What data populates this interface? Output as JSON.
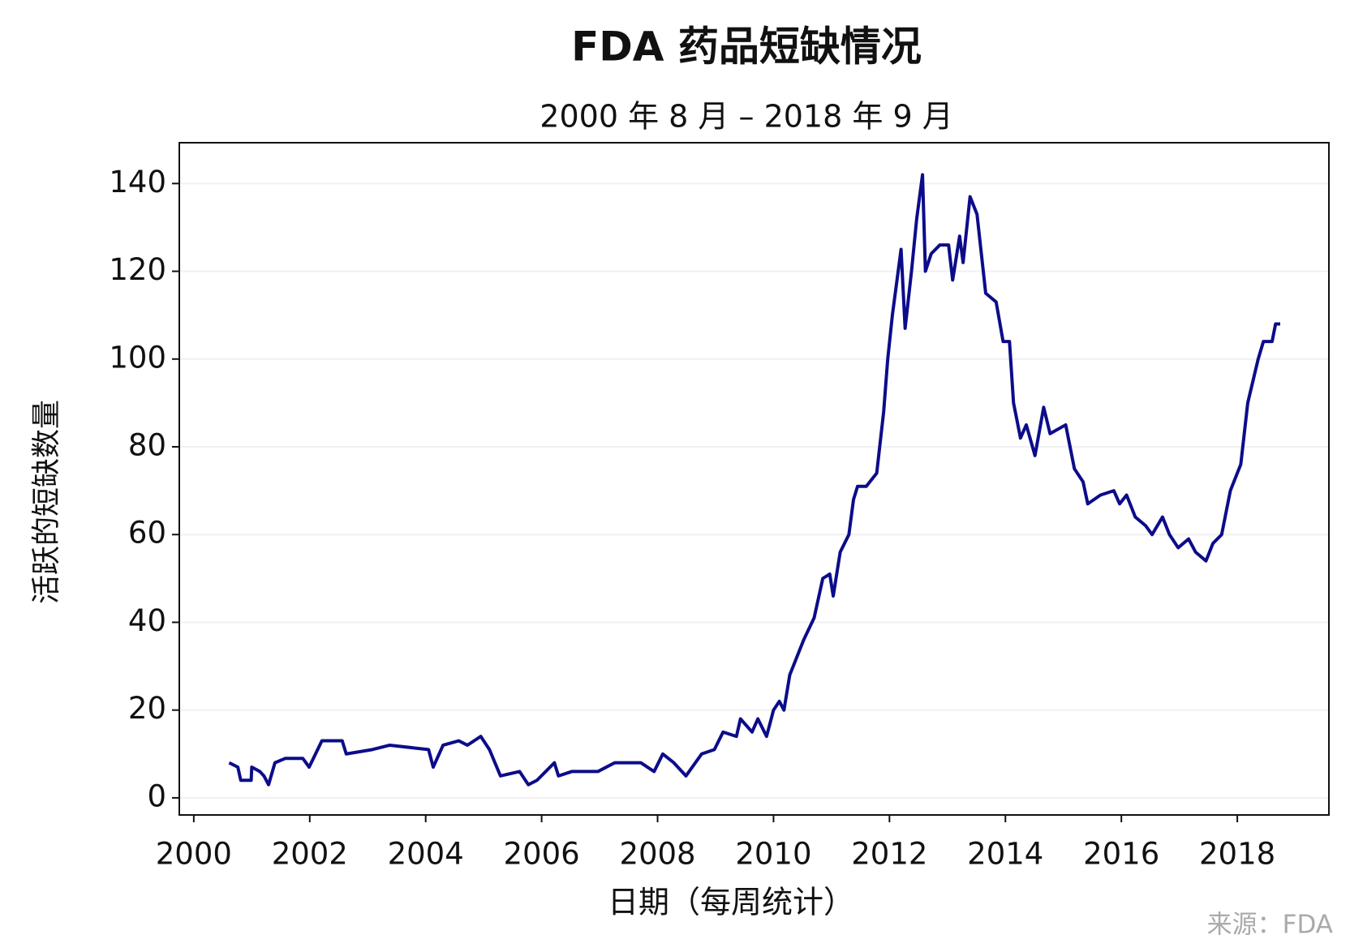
{
  "chart_data": {
    "type": "line",
    "title": "FDA 药品短缺情况",
    "subtitle": "2000 年 8 月 – 2018 年 9 月",
    "x_label": "日期（每周统计）",
    "y_label": "活跃的短缺数量",
    "source": "来源：FDA",
    "x": [
      2000.61,
      2000.76,
      2000.81,
      2000.99,
      2001.0,
      2001.14,
      2001.21,
      2001.29,
      2001.4,
      2001.58,
      2001.88,
      2001.99,
      2002.21,
      2002.56,
      2002.63,
      2003.08,
      2003.38,
      2004.05,
      2004.13,
      2004.3,
      2004.57,
      2004.72,
      2004.95,
      2005.1,
      2005.29,
      2005.62,
      2005.77,
      2005.92,
      2006.07,
      2006.22,
      2006.29,
      2006.52,
      2006.97,
      2007.26,
      2007.71,
      2007.94,
      2008.09,
      2008.28,
      2008.49,
      2008.76,
      2008.98,
      2009.13,
      2009.36,
      2009.43,
      2009.63,
      2009.73,
      2009.88,
      2010.0,
      2010.1,
      2010.18,
      2010.28,
      2010.4,
      2010.52,
      2010.7,
      2010.85,
      2010.97,
      2011.03,
      2011.15,
      2011.3,
      2011.38,
      2011.45,
      2011.6,
      2011.78,
      2011.9,
      2011.97,
      2012.05,
      2012.2,
      2012.27,
      2012.38,
      2012.47,
      2012.57,
      2012.62,
      2012.72,
      2012.87,
      2013.02,
      2013.09,
      2013.21,
      2013.27,
      2013.39,
      2013.51,
      2013.66,
      2013.84,
      2013.96,
      2014.07,
      2014.14,
      2014.26,
      2014.36,
      2014.51,
      2014.66,
      2014.77,
      2015.04,
      2015.19,
      2015.34,
      2015.42,
      2015.64,
      2015.87,
      2015.97,
      2016.09,
      2016.24,
      2016.42,
      2016.53,
      2016.71,
      2016.83,
      2016.98,
      2017.16,
      2017.28,
      2017.46,
      2017.58,
      2017.73,
      2017.88,
      2018.06,
      2018.18,
      2018.36,
      2018.45,
      2018.6,
      2018.66,
      2018.74
    ],
    "series": [
      {
        "name": "活跃的短缺数量",
        "color": "#0c0c8a",
        "values": [
          8,
          7,
          4,
          4,
          7,
          6,
          5,
          3,
          8,
          9,
          9,
          7,
          13,
          13,
          10,
          11,
          12,
          11,
          7,
          12,
          13,
          12,
          14,
          11,
          5,
          6,
          3,
          4,
          6,
          8,
          5,
          6,
          6,
          8,
          8,
          6,
          10,
          8,
          5,
          10,
          11,
          15,
          14,
          18,
          15,
          18,
          14,
          20,
          22,
          20,
          28,
          32,
          36,
          41,
          50,
          51,
          46,
          56,
          60,
          68,
          71,
          71,
          74,
          88,
          100,
          110,
          125,
          107,
          120,
          132,
          142,
          120,
          124,
          126,
          126,
          118,
          128,
          122,
          137,
          133,
          115,
          113,
          104,
          104,
          90,
          82,
          85,
          78,
          89,
          83,
          85,
          75,
          72,
          67,
          69,
          70,
          67,
          69,
          64,
          62,
          60,
          64,
          60,
          57,
          59,
          56,
          54,
          58,
          60,
          70,
          76,
          90,
          100,
          104,
          104,
          108,
          108
        ]
      }
    ],
    "xlim": [
      1999.75,
      2019.58
    ],
    "ylim": [
      -3.9,
      149.3
    ],
    "xticks": [
      2000,
      2002,
      2004,
      2006,
      2008,
      2010,
      2012,
      2014,
      2016,
      2018
    ],
    "yticks": [
      0,
      20,
      40,
      60,
      80,
      100,
      120,
      140
    ],
    "grid": true,
    "legend": false
  }
}
